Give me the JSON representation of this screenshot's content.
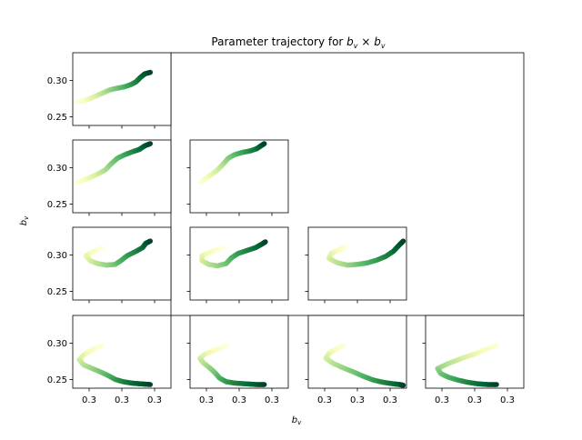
{
  "figure": {
    "title_prefix": "Parameter trajectory for ",
    "title_var_a": "b",
    "title_var_a_sub": "v",
    "title_operator": " × ",
    "title_var_b": "b",
    "title_var_b_sub": "v",
    "xlabel_var": "b",
    "xlabel_sub": "v",
    "ylabel_var": "b",
    "ylabel_sub": "v"
  },
  "chart_data": {
    "type": "scatter",
    "layout": "lower-triangular grid 4x4, shared axes per row and column",
    "colormap": [
      "#ffffe5",
      "#f7fcb9",
      "#d9f0a3",
      "#addd8e",
      "#78c679",
      "#41ab5d",
      "#238443",
      "#006837",
      "#004529"
    ],
    "ylim": [
      0.238,
      0.338
    ],
    "yticks": [
      0.25,
      0.3
    ],
    "ytick_labels": [
      "0.25",
      "0.30"
    ],
    "col_xlims": [
      [
        0.262,
        0.352
      ],
      [
        0.262,
        0.352
      ],
      [
        0.262,
        0.352
      ],
      [
        0.262,
        0.352
      ]
    ],
    "xtick_values": [
      [
        0.277,
        0.307,
        0.337
      ],
      [
        0.277,
        0.307,
        0.337
      ],
      [
        0.277,
        0.307,
        0.337
      ],
      [
        0.277,
        0.307,
        0.337
      ]
    ],
    "xtick_labels": [
      "0.3",
      "0.3",
      "0.3"
    ],
    "panels": [
      {
        "row": 0,
        "col": 0,
        "points": [
          [
            0.265,
            0.27
          ],
          [
            0.272,
            0.272
          ],
          [
            0.278,
            0.275
          ],
          [
            0.284,
            0.279
          ],
          [
            0.29,
            0.283
          ],
          [
            0.296,
            0.287
          ],
          [
            0.302,
            0.289
          ],
          [
            0.309,
            0.291
          ],
          [
            0.315,
            0.294
          ],
          [
            0.32,
            0.298
          ],
          [
            0.324,
            0.304
          ],
          [
            0.328,
            0.309
          ],
          [
            0.333,
            0.311
          ]
        ]
      },
      {
        "row": 1,
        "col": 0,
        "points": [
          [
            0.265,
            0.279
          ],
          [
            0.272,
            0.283
          ],
          [
            0.279,
            0.287
          ],
          [
            0.286,
            0.292
          ],
          [
            0.292,
            0.297
          ],
          [
            0.297,
            0.305
          ],
          [
            0.303,
            0.313
          ],
          [
            0.31,
            0.318
          ],
          [
            0.317,
            0.322
          ],
          [
            0.323,
            0.325
          ],
          [
            0.328,
            0.33
          ],
          [
            0.333,
            0.333
          ]
        ]
      },
      {
        "row": 1,
        "col": 1,
        "points": [
          [
            0.271,
            0.279
          ],
          [
            0.276,
            0.285
          ],
          [
            0.282,
            0.291
          ],
          [
            0.288,
            0.298
          ],
          [
            0.293,
            0.306
          ],
          [
            0.297,
            0.313
          ],
          [
            0.303,
            0.318
          ],
          [
            0.31,
            0.321
          ],
          [
            0.317,
            0.323
          ],
          [
            0.323,
            0.326
          ],
          [
            0.327,
            0.33
          ],
          [
            0.33,
            0.333
          ]
        ]
      },
      {
        "row": 2,
        "col": 0,
        "points": [
          [
            0.289,
            0.31
          ],
          [
            0.28,
            0.304
          ],
          [
            0.274,
            0.299
          ],
          [
            0.278,
            0.292
          ],
          [
            0.285,
            0.288
          ],
          [
            0.293,
            0.286
          ],
          [
            0.301,
            0.287
          ],
          [
            0.306,
            0.292
          ],
          [
            0.312,
            0.299
          ],
          [
            0.32,
            0.305
          ],
          [
            0.326,
            0.31
          ],
          [
            0.329,
            0.316
          ],
          [
            0.333,
            0.319
          ]
        ]
      },
      {
        "row": 2,
        "col": 1,
        "points": [
          [
            0.293,
            0.31
          ],
          [
            0.282,
            0.305
          ],
          [
            0.273,
            0.299
          ],
          [
            0.273,
            0.292
          ],
          [
            0.279,
            0.287
          ],
          [
            0.287,
            0.285
          ],
          [
            0.295,
            0.288
          ],
          [
            0.3,
            0.296
          ],
          [
            0.306,
            0.302
          ],
          [
            0.314,
            0.306
          ],
          [
            0.322,
            0.31
          ],
          [
            0.328,
            0.315
          ],
          [
            0.331,
            0.318
          ]
        ]
      },
      {
        "row": 2,
        "col": 2,
        "points": [
          [
            0.296,
            0.311
          ],
          [
            0.29,
            0.307
          ],
          [
            0.283,
            0.302
          ],
          [
            0.281,
            0.295
          ],
          [
            0.289,
            0.289
          ],
          [
            0.298,
            0.286
          ],
          [
            0.307,
            0.287
          ],
          [
            0.316,
            0.289
          ],
          [
            0.325,
            0.293
          ],
          [
            0.333,
            0.298
          ],
          [
            0.34,
            0.305
          ],
          [
            0.345,
            0.313
          ],
          [
            0.349,
            0.319
          ]
        ]
      },
      {
        "row": 3,
        "col": 0,
        "points": [
          [
            0.289,
            0.297
          ],
          [
            0.28,
            0.291
          ],
          [
            0.272,
            0.284
          ],
          [
            0.268,
            0.277
          ],
          [
            0.272,
            0.27
          ],
          [
            0.28,
            0.265
          ],
          [
            0.288,
            0.26
          ],
          [
            0.295,
            0.255
          ],
          [
            0.301,
            0.25
          ],
          [
            0.308,
            0.247
          ],
          [
            0.316,
            0.245
          ],
          [
            0.324,
            0.244
          ],
          [
            0.333,
            0.243
          ]
        ]
      },
      {
        "row": 3,
        "col": 1,
        "points": [
          [
            0.296,
            0.297
          ],
          [
            0.286,
            0.291
          ],
          [
            0.276,
            0.285
          ],
          [
            0.271,
            0.279
          ],
          [
            0.274,
            0.273
          ],
          [
            0.28,
            0.266
          ],
          [
            0.285,
            0.259
          ],
          [
            0.289,
            0.252
          ],
          [
            0.295,
            0.247
          ],
          [
            0.303,
            0.245
          ],
          [
            0.313,
            0.244
          ],
          [
            0.323,
            0.243
          ],
          [
            0.33,
            0.243
          ]
        ]
      },
      {
        "row": 3,
        "col": 2,
        "points": [
          [
            0.295,
            0.297
          ],
          [
            0.288,
            0.292
          ],
          [
            0.281,
            0.286
          ],
          [
            0.278,
            0.279
          ],
          [
            0.285,
            0.272
          ],
          [
            0.294,
            0.266
          ],
          [
            0.304,
            0.26
          ],
          [
            0.313,
            0.254
          ],
          [
            0.322,
            0.249
          ],
          [
            0.331,
            0.246
          ],
          [
            0.34,
            0.244
          ],
          [
            0.346,
            0.243
          ],
          [
            0.349,
            0.242
          ]
        ]
      },
      {
        "row": 3,
        "col": 3,
        "points": [
          [
            0.328,
            0.297
          ],
          [
            0.318,
            0.292
          ],
          [
            0.307,
            0.285
          ],
          [
            0.295,
            0.279
          ],
          [
            0.283,
            0.272
          ],
          [
            0.273,
            0.265
          ],
          [
            0.276,
            0.258
          ],
          [
            0.283,
            0.253
          ],
          [
            0.292,
            0.249
          ],
          [
            0.301,
            0.246
          ],
          [
            0.31,
            0.244
          ],
          [
            0.319,
            0.243
          ],
          [
            0.327,
            0.243
          ]
        ]
      }
    ]
  }
}
